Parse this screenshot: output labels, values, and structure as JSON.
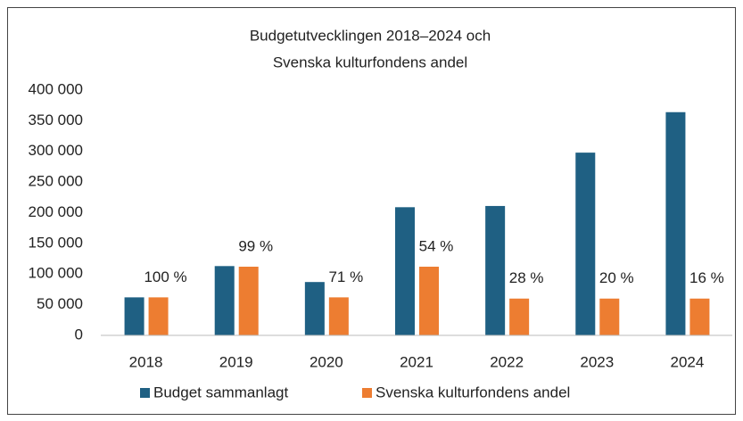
{
  "chart_data": {
    "type": "bar",
    "title": [
      "Budgetutvecklingen 2018–2024 och",
      "Svenska kulturfondens andel"
    ],
    "categories": [
      "2018",
      "2019",
      "2020",
      "2021",
      "2022",
      "2023",
      "2024"
    ],
    "series": [
      {
        "name": "Budget sammanlagt",
        "color": "#1f6083",
        "values": [
          62000,
          113000,
          87000,
          209000,
          211000,
          298000,
          364000
        ]
      },
      {
        "name": "Svenska kulturfondens andel",
        "color": "#ed7d31",
        "values": [
          62000,
          112000,
          62000,
          112000,
          60000,
          60000,
          60000
        ]
      }
    ],
    "annotations": [
      "100 %",
      "99 %",
      "71 %",
      "54 %",
      "28 %",
      "20 %",
      "16 %"
    ],
    "ylim": [
      0,
      400000
    ],
    "yticks": [
      0,
      {
        "value": 50000,
        "label": "50 000"
      },
      {
        "value": 100000,
        "label": "100 000"
      },
      {
        "value": 150000,
        "label": "150 000"
      },
      {
        "value": 200000,
        "label": "200 000"
      },
      {
        "value": 250000,
        "label": "250 000"
      },
      {
        "value": 300000,
        "label": "300 000"
      },
      {
        "value": 350000,
        "label": "350 000"
      },
      {
        "value": 400000,
        "label": "400 000"
      }
    ],
    "grid": false,
    "legend": "bottom"
  }
}
